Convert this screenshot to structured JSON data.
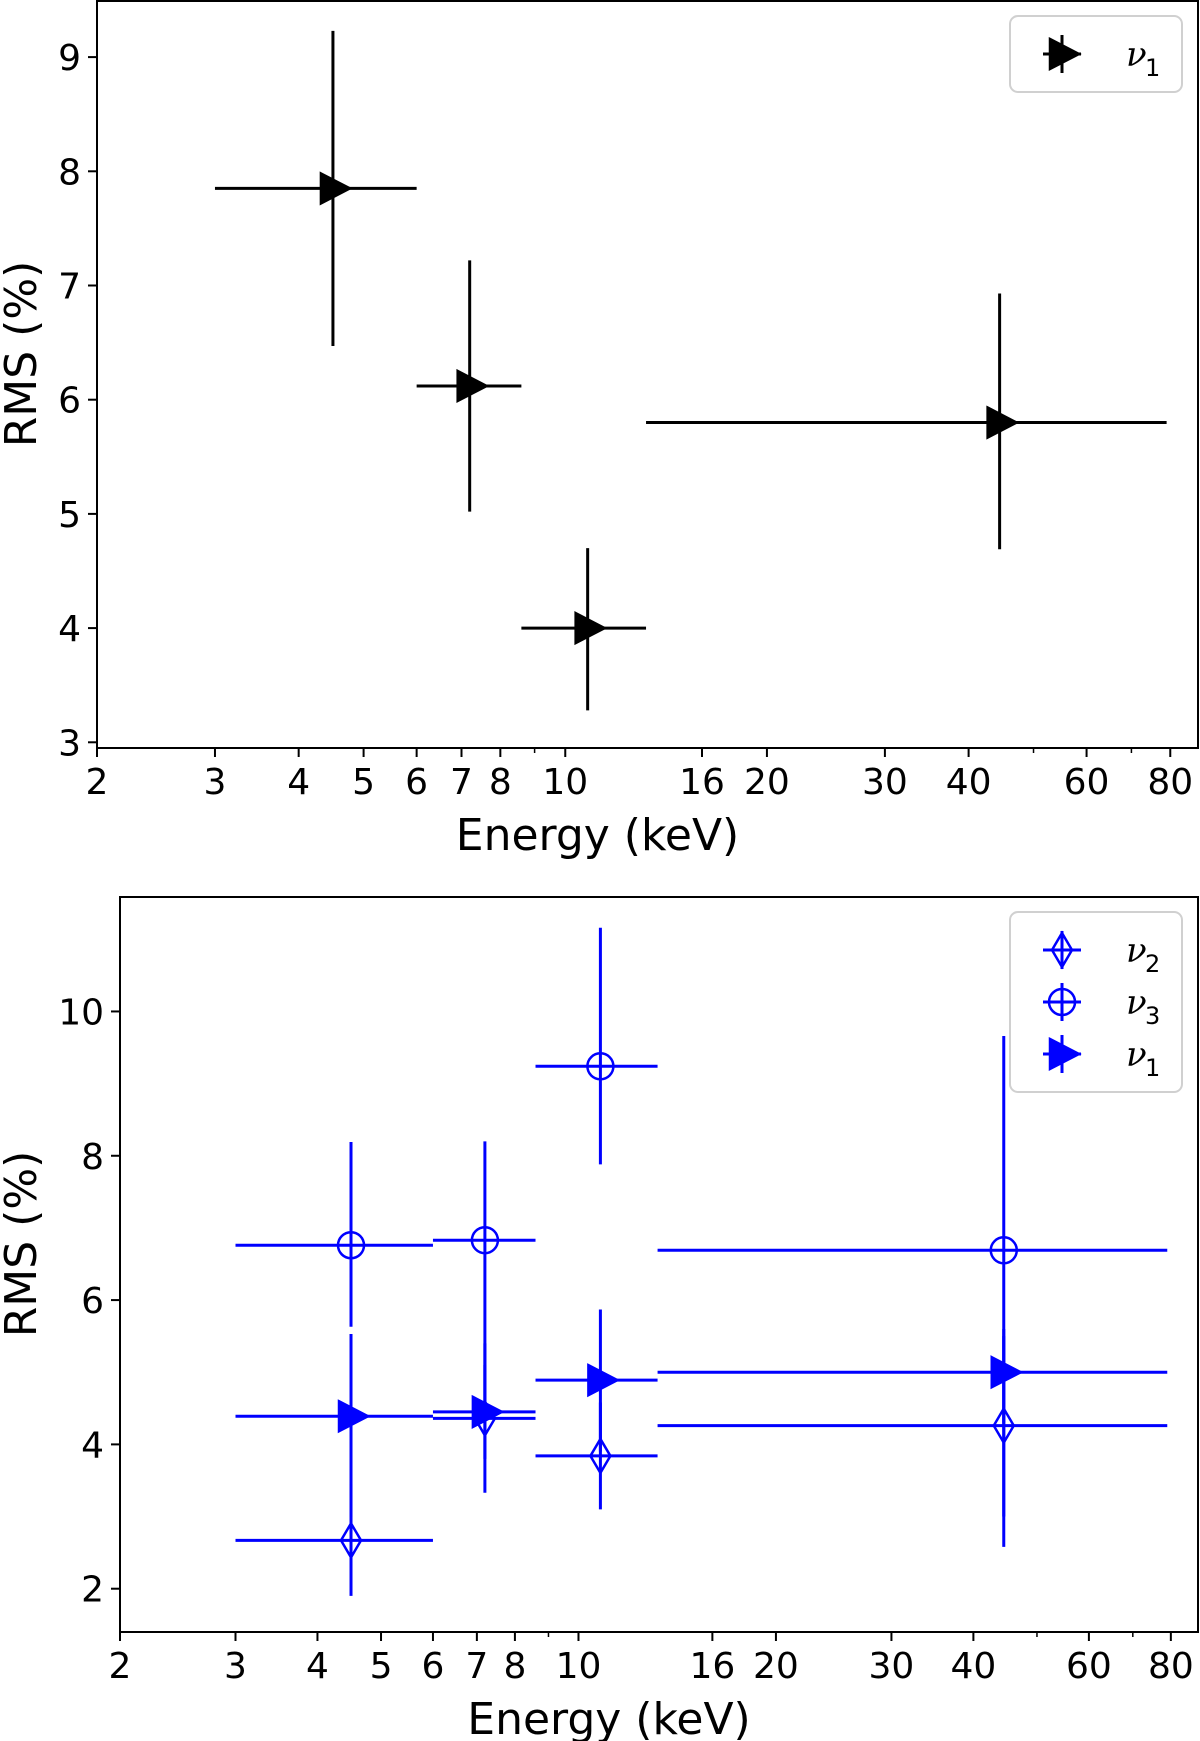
{
  "chart_data": [
    {
      "type": "scatter",
      "title": "",
      "xlabel": "Energy (keV)",
      "ylabel": "RMS (%)",
      "xscale": "log",
      "xlim": [
        2,
        88
      ],
      "ylim": [
        2.95,
        9.5
      ],
      "xticks": [
        2,
        3,
        4,
        5,
        6,
        7,
        8,
        10,
        16,
        20,
        30,
        40,
        60,
        80
      ],
      "xtick_labels": [
        "2",
        "3",
        "4",
        "5",
        "6",
        "7",
        "8",
        "10",
        "16",
        "20",
        "30",
        "40",
        "60",
        "80"
      ],
      "yticks": [
        3,
        4,
        5,
        6,
        7,
        8,
        9
      ],
      "ytick_labels": [
        "3",
        "4",
        "5",
        "6",
        "7",
        "8",
        "9"
      ],
      "grid": false,
      "legend_position": "top-right",
      "series": [
        {
          "name": "ν",
          "subscript": "1",
          "marker": "triangle-right",
          "filled": true,
          "color": "#000000",
          "points": [
            {
              "x": 4.5,
              "xlo": 3,
              "xhi": 6,
              "y": 7.85,
              "ylo": 6.47,
              "yhi": 9.23
            },
            {
              "x": 7.2,
              "xlo": 6,
              "xhi": 8.6,
              "y": 6.12,
              "ylo": 5.02,
              "yhi": 7.22
            },
            {
              "x": 10.8,
              "xlo": 8.6,
              "xhi": 13.2,
              "y": 4.0,
              "ylo": 3.28,
              "yhi": 4.7
            },
            {
              "x": 44.5,
              "xlo": 13.2,
              "xhi": 79,
              "y": 5.8,
              "ylo": 4.69,
              "yhi": 6.93
            }
          ]
        }
      ]
    },
    {
      "type": "scatter",
      "title": "",
      "xlabel": "Energy (keV)",
      "ylabel": "RMS (%)",
      "xscale": "log",
      "xlim": [
        2,
        88
      ],
      "ylim": [
        1.4,
        11.6
      ],
      "xticks": [
        2,
        3,
        4,
        5,
        6,
        7,
        8,
        10,
        16,
        20,
        30,
        40,
        60,
        80
      ],
      "xtick_labels": [
        "2",
        "3",
        "4",
        "5",
        "6",
        "7",
        "8",
        "10",
        "16",
        "20",
        "30",
        "40",
        "60",
        "80"
      ],
      "yticks": [
        2,
        4,
        6,
        8,
        10
      ],
      "ytick_labels": [
        "2",
        "4",
        "6",
        "8",
        "10"
      ],
      "grid": false,
      "legend_position": "top-right",
      "series": [
        {
          "name": "ν",
          "subscript": "2",
          "marker": "thin-diamond",
          "filled": false,
          "color": "#0000ff",
          "points": [
            {
              "x": 4.5,
              "xlo": 3,
              "xhi": 6,
              "y": 2.67,
              "ylo": 1.9,
              "yhi": 3.45
            },
            {
              "x": 7.2,
              "xlo": 6,
              "xhi": 8.6,
              "y": 4.36,
              "ylo": 3.33,
              "yhi": 5.4
            },
            {
              "x": 10.8,
              "xlo": 8.6,
              "xhi": 13.2,
              "y": 3.84,
              "ylo": 3.1,
              "yhi": 4.58
            },
            {
              "x": 44.5,
              "xlo": 13.2,
              "xhi": 79,
              "y": 4.26,
              "ylo": 3.0,
              "yhi": 5.5
            }
          ]
        },
        {
          "name": "ν",
          "subscript": "3",
          "marker": "circle",
          "filled": false,
          "color": "#0000ff",
          "points": [
            {
              "x": 4.5,
              "xlo": 3,
              "xhi": 6,
              "y": 6.76,
              "ylo": 5.63,
              "yhi": 8.19
            },
            {
              "x": 7.2,
              "xlo": 6,
              "xhi": 8.6,
              "y": 6.83,
              "ylo": 4.45,
              "yhi": 8.2
            },
            {
              "x": 10.8,
              "xlo": 8.6,
              "xhi": 13.2,
              "y": 9.24,
              "ylo": 7.88,
              "yhi": 11.16
            },
            {
              "x": 44.5,
              "xlo": 13.2,
              "xhi": 79,
              "y": 6.69,
              "ylo": 4.3,
              "yhi": 9.66
            }
          ]
        },
        {
          "name": "ν",
          "subscript": "1",
          "marker": "triangle-right",
          "filled": true,
          "color": "#0000ff",
          "points": [
            {
              "x": 4.5,
              "xlo": 3,
              "xhi": 6,
              "y": 4.39,
              "ylo": 3.0,
              "yhi": 5.53
            },
            {
              "x": 7.2,
              "xlo": 6,
              "xhi": 8.6,
              "y": 4.45,
              "ylo": 3.8,
              "yhi": 5.1
            },
            {
              "x": 10.8,
              "xlo": 8.6,
              "xhi": 13.2,
              "y": 4.89,
              "ylo": 3.9,
              "yhi": 5.87
            },
            {
              "x": 44.5,
              "xlo": 13.2,
              "xhi": 79,
              "y": 5.0,
              "ylo": 2.58,
              "yhi": 5.6
            }
          ]
        }
      ]
    }
  ]
}
